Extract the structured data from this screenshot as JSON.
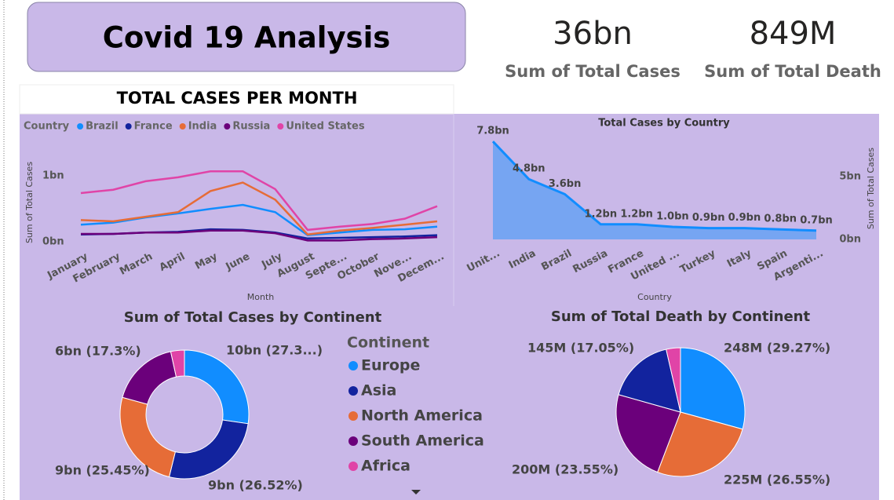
{
  "header": {
    "title": "Covid 19 Analysis"
  },
  "kpis": [
    {
      "value": "36bn",
      "label": "Sum of Total Cases"
    },
    {
      "value": "849M",
      "label": "Sum of Total Death"
    }
  ],
  "chart_data": [
    {
      "type": "line",
      "title": "TOTAL CASES PER MONTH",
      "legend_title": "Country",
      "y_label": "Sum of Total Cases",
      "x_label": "Month",
      "categories": [
        "January",
        "February",
        "March",
        "April",
        "May",
        "June",
        "July",
        "August",
        "Septe...",
        "October",
        "Nove...",
        "Decem..."
      ],
      "ylim": [
        0,
        1.3
      ],
      "yticks": [
        {
          "value": 0,
          "label": "0bn"
        },
        {
          "value": 1,
          "label": "1bn"
        }
      ],
      "series": [
        {
          "name": "Brazil",
          "color": "#118dff",
          "values": [
            0.26,
            0.29,
            0.37,
            0.43,
            0.5,
            0.56,
            0.45,
            0.1,
            0.14,
            0.18,
            0.19,
            0.23
          ]
        },
        {
          "name": "France",
          "color": "#12239e",
          "values": [
            0.11,
            0.12,
            0.14,
            0.15,
            0.19,
            0.18,
            0.14,
            0.05,
            0.06,
            0.07,
            0.08,
            0.1
          ]
        },
        {
          "name": "India",
          "color": "#e66c37",
          "values": [
            0.33,
            0.31,
            0.38,
            0.45,
            0.77,
            0.9,
            0.64,
            0.11,
            0.17,
            0.21,
            0.26,
            0.31
          ]
        },
        {
          "name": "Russia",
          "color": "#6b007b",
          "values": [
            0.12,
            0.12,
            0.14,
            0.14,
            0.17,
            0.17,
            0.13,
            0.02,
            0.02,
            0.04,
            0.05,
            0.07
          ]
        },
        {
          "name": "United States",
          "color": "#e044a7",
          "values": [
            0.74,
            0.79,
            0.92,
            0.98,
            1.07,
            1.07,
            0.8,
            0.18,
            0.23,
            0.27,
            0.35,
            0.54
          ]
        }
      ]
    },
    {
      "type": "area",
      "title": "Total Cases by Country",
      "y2_label": "Sum of Total Cases",
      "x_label": "Country",
      "categories": [
        "Unit...",
        "India",
        "Brazil",
        "Russia",
        "France",
        "United ...",
        "Turkey",
        "Italy",
        "Spain",
        "Argenti..."
      ],
      "values": [
        7.8,
        4.8,
        3.6,
        1.2,
        1.2,
        1.0,
        0.9,
        0.9,
        0.8,
        0.7
      ],
      "value_labels": [
        "7.8bn",
        "4.8bn",
        "3.6bn",
        "1.2bn",
        "1.2bn",
        "1.0bn",
        "0.9bn",
        "0.9bn",
        "0.8bn",
        "0.7bn"
      ],
      "color": "#118dff",
      "axis": "y2",
      "y2lim": [
        0,
        8
      ],
      "y2ticks": [
        {
          "value": 0,
          "label": "0bn"
        },
        {
          "value": 5,
          "label": "5bn"
        }
      ]
    },
    {
      "type": "donut",
      "title": "Sum of Total Cases by Continent",
      "legend_title": "Continent",
      "categories": [
        "Europe",
        "Asia",
        "North America",
        "South America",
        "Africa"
      ],
      "values": [
        27.3,
        26.52,
        25.45,
        17.3,
        3.43
      ],
      "value_labels": [
        "10bn (27.3...)",
        "9bn (26.52%)",
        "9bn (25.45%)",
        "6bn (17.3%)",
        null
      ],
      "colors": [
        "#118dff",
        "#12239e",
        "#e66c37",
        "#6b007b",
        "#e044a7"
      ]
    },
    {
      "type": "pie",
      "title": "Sum of Total Death by Continent",
      "values": [
        29.27,
        26.55,
        23.55,
        17.05,
        3.58
      ],
      "value_labels": [
        "248M (29.27%)",
        "225M (26.55%)",
        "200M (23.55%)",
        "145M (17.05%)",
        null
      ],
      "colors": [
        "#118dff",
        "#e66c37",
        "#6b007b",
        "#12239e",
        "#e044a7"
      ]
    }
  ]
}
